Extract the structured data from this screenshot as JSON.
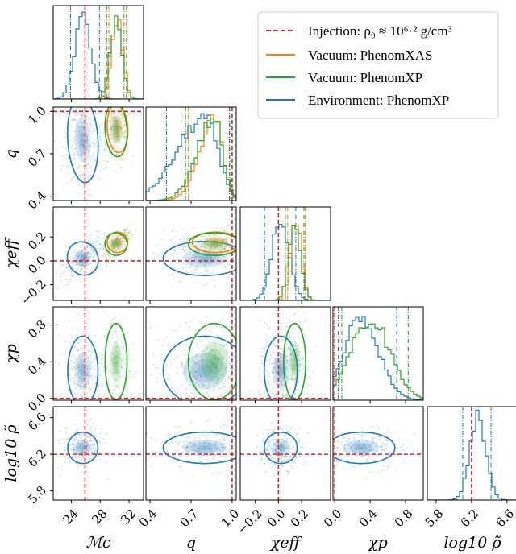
{
  "legend": {
    "items": [
      {
        "label": "Injection: ρ₀ ≈ 10⁶·² g/cm³",
        "color": "#d62728",
        "style": "dashed"
      },
      {
        "label": "Vacuum: PhenomXAS",
        "color": "#ff7f0e",
        "style": "solid"
      },
      {
        "label": "Vacuum: PhenomXP",
        "color": "#2ca02c",
        "style": "solid"
      },
      {
        "label": "Environment: PhenomXP",
        "color": "#1f77b4",
        "style": "solid"
      }
    ]
  },
  "colors": {
    "blue": "#1f77b4",
    "orange": "#ff7f0e",
    "green": "#2ca02c",
    "injection": "#d62728"
  },
  "chart_data": {
    "type": "corner",
    "parameters": [
      {
        "key": "Mc",
        "label": "ℳc",
        "range": [
          21.5,
          34
        ],
        "ticks": [
          {
            "value": 24,
            "label": "24"
          },
          {
            "value": 28,
            "label": "28"
          },
          {
            "value": 32,
            "label": "32"
          }
        ],
        "injection": 25.9
      },
      {
        "key": "q",
        "label": "q",
        "range": [
          0.37,
          1.03
        ],
        "ticks": [
          {
            "value": 0.4,
            "label": "0.4"
          },
          {
            "value": 0.7,
            "label": "0.7"
          },
          {
            "value": 1.0,
            "label": "1.0"
          }
        ],
        "injection": 1.0
      },
      {
        "key": "chi_eff",
        "label": "χeff",
        "range": [
          -0.33,
          0.45
        ],
        "ticks": [
          {
            "value": -0.2,
            "label": "−0.2"
          },
          {
            "value": 0.0,
            "label": "0.0"
          },
          {
            "value": 0.2,
            "label": "0.2"
          }
        ],
        "injection": 0.0
      },
      {
        "key": "chi_p",
        "label": "χp",
        "range": [
          -0.02,
          1.0
        ],
        "ticks": [
          {
            "value": 0.0,
            "label": "0.0"
          },
          {
            "value": 0.4,
            "label": "0.4"
          },
          {
            "value": 0.8,
            "label": "0.8"
          }
        ],
        "injection": 0.0
      },
      {
        "key": "log10_rho",
        "label": "log10 ρ̃",
        "range": [
          5.7,
          6.72
        ],
        "ticks": [
          {
            "value": 5.8,
            "label": "5.8"
          },
          {
            "value": 6.2,
            "label": "6.2"
          },
          {
            "value": 6.6,
            "label": "6.6"
          }
        ],
        "injection": 6.2
      }
    ],
    "left_tick_labels": {
      "q": [
        "0.4",
        "0.7",
        "1.0"
      ],
      "chi_eff": [
        "−0.2",
        "0.0",
        "0.2"
      ],
      "chi_p": [
        "0.0",
        "0.4",
        "0.8"
      ],
      "log10_rho": [
        "5.8",
        "6.2",
        "6.6"
      ]
    },
    "posteriors": [
      {
        "name": "Environment: PhenomXP",
        "color": "#1f77b4",
        "params": {
          "Mc": {
            "center": 25.6,
            "sigma": 1.1,
            "ci": [
              23.9,
              27.9
            ]
          },
          "q": {
            "center": 0.8,
            "sigma": 0.16,
            "ci": [
              0.52,
              0.98
            ],
            "skew": "left"
          },
          "chi_eff": {
            "center": 0.02,
            "sigma": 0.075,
            "ci": [
              -0.12,
              0.15
            ]
          },
          "chi_p": {
            "center": 0.3,
            "sigma": 0.2,
            "ci": [
              0.04,
              0.7
            ]
          },
          "log10_rho": {
            "center": 6.27,
            "sigma": 0.09,
            "ci": [
              6.1,
              6.42
            ]
          }
        }
      },
      {
        "name": "Vacuum: PhenomXAS",
        "color": "#ff7f0e",
        "params": {
          "Mc": {
            "center": 30.4,
            "sigma": 0.75,
            "ci": [
              29.2,
              31.6
            ]
          },
          "q": {
            "center": 0.88,
            "sigma": 0.09,
            "ci": [
              0.68,
              0.99
            ],
            "skew": "left"
          },
          "chi_eff": {
            "center": 0.155,
            "sigma": 0.045,
            "ci": [
              0.08,
              0.23
            ]
          }
        }
      },
      {
        "name": "Vacuum: PhenomXP",
        "color": "#2ca02c",
        "params": {
          "Mc": {
            "center": 30.2,
            "sigma": 0.8,
            "ci": [
              28.9,
              31.3
            ]
          },
          "q": {
            "center": 0.87,
            "sigma": 0.1,
            "ci": [
              0.66,
              0.99
            ],
            "skew": "left"
          },
          "chi_eff": {
            "center": 0.14,
            "sigma": 0.05,
            "ci": [
              0.06,
              0.22
            ]
          },
          "chi_p": {
            "center": 0.4,
            "sigma": 0.22,
            "ci": [
              0.08,
              0.83
            ]
          }
        }
      }
    ]
  }
}
